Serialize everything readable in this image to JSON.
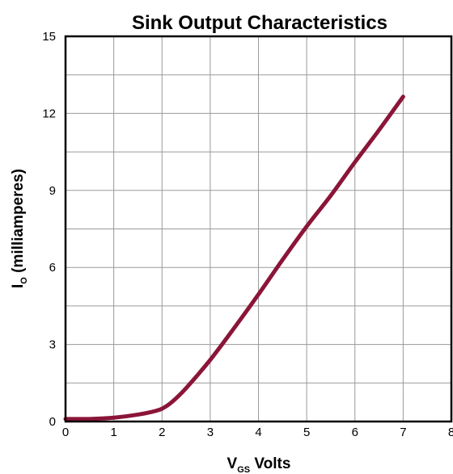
{
  "chart_data": {
    "type": "line",
    "title": "Sink Output Characteristics",
    "xlabel": {
      "main": "V",
      "sub": "GS",
      "suffix": " Volts"
    },
    "ylabel": {
      "main": "I",
      "sub": "O",
      "suffix": " (milliamperes)"
    },
    "xlim": [
      0,
      8
    ],
    "ylim": [
      0,
      15
    ],
    "xticks": [
      0,
      1,
      2,
      3,
      4,
      5,
      6,
      7,
      8
    ],
    "yticks": [
      0,
      3,
      6,
      9,
      12,
      15
    ],
    "x_minor_step": 1,
    "y_minor_step": 1.5,
    "grid": true,
    "series": [
      {
        "color": "#8b1538",
        "x": [
          0,
          0.5,
          1.0,
          1.5,
          1.8,
          2.0,
          2.2,
          2.5,
          3.0,
          3.5,
          4.0,
          4.5,
          5.0,
          5.5,
          6.0,
          6.5,
          7.0
        ],
        "y": [
          0.1,
          0.1,
          0.15,
          0.27,
          0.38,
          0.5,
          0.75,
          1.3,
          2.4,
          3.65,
          4.95,
          6.3,
          7.6,
          8.8,
          10.1,
          11.35,
          12.65
        ]
      }
    ]
  }
}
